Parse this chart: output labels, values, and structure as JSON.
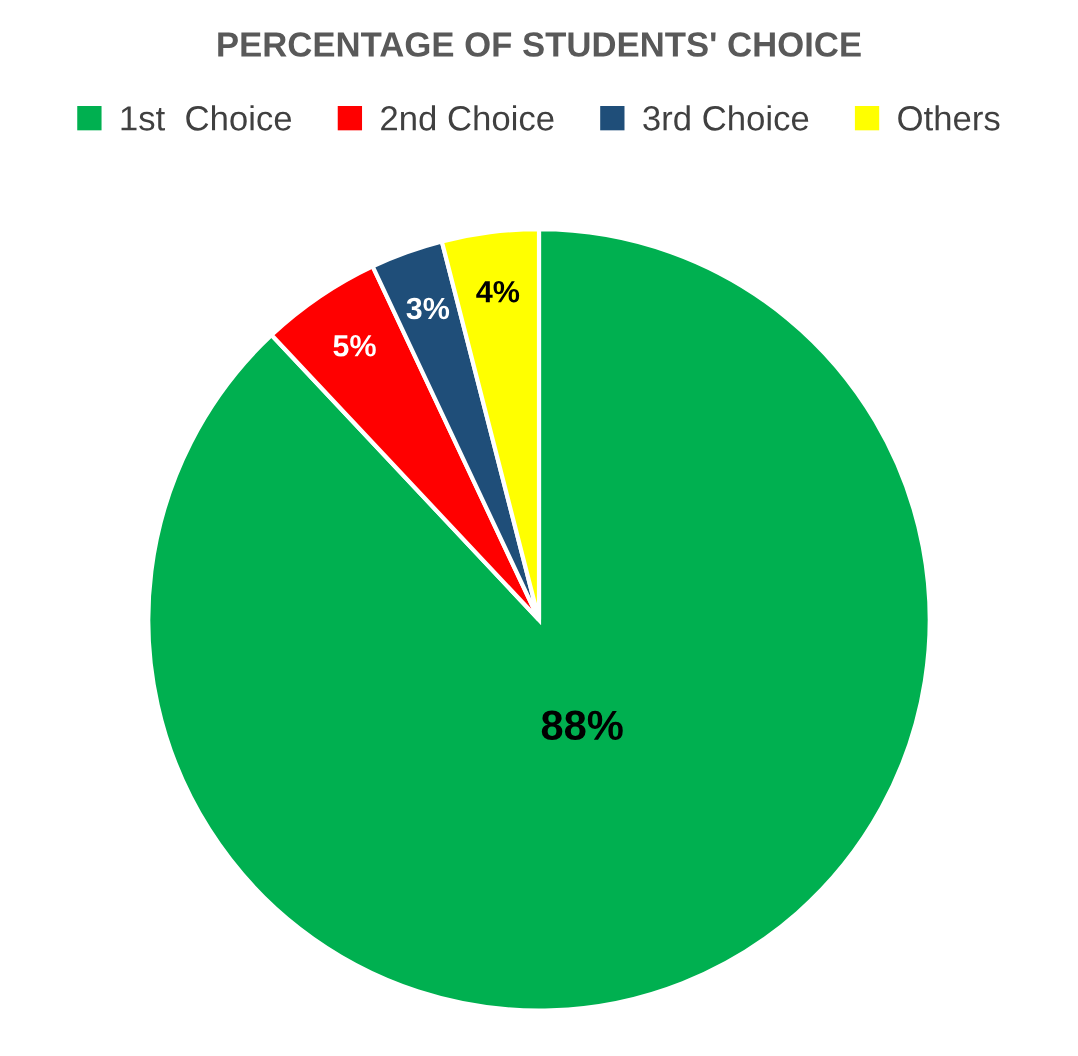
{
  "chart_data": {
    "type": "pie",
    "title": "PERCENTAGE OF STUDENTS' CHOICE",
    "categories": [
      "1st  Choice",
      "2nd Choice",
      "3rd Choice",
      "Others"
    ],
    "values": [
      88,
      5,
      3,
      4
    ],
    "colors": [
      "#00b050",
      "#ff0000",
      "#1f4e79",
      "#ffff00"
    ],
    "value_labels": [
      "88%",
      "5%",
      "3%",
      "4%"
    ],
    "legend": "top"
  }
}
